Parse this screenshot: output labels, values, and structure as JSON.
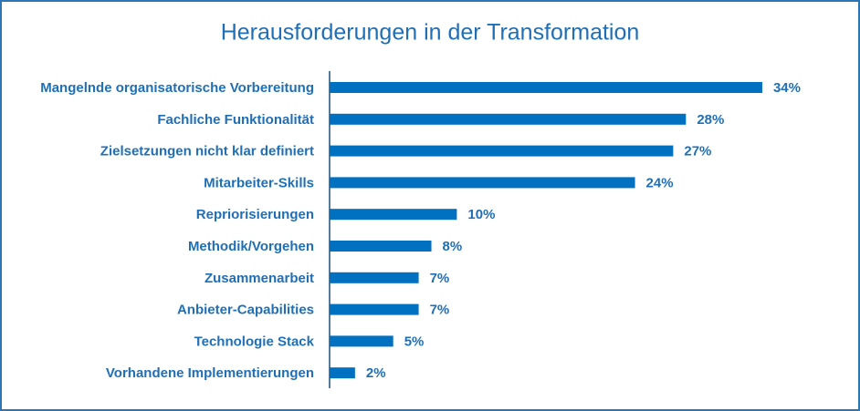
{
  "chart_data": {
    "type": "bar",
    "orientation": "horizontal",
    "title": "Herausforderungen  in der Transformation",
    "categories": [
      "Mangelnde organisatorische Vorbereitung",
      "Fachliche Funktionalität",
      "Zielsetzungen nicht klar definiert",
      "Mitarbeiter-Skills",
      "Repriorisierungen",
      "Methodik/Vorgehen",
      "Zusammenarbeit",
      "Anbieter-Capabilities",
      "Technologie Stack",
      "Vorhandene Implementierungen"
    ],
    "values": [
      34,
      28,
      27,
      24,
      10,
      8,
      7,
      7,
      5,
      2
    ],
    "value_labels": [
      "34%",
      "28%",
      "27%",
      "24%",
      "10%",
      "8%",
      "7%",
      "7%",
      "5%",
      "2%"
    ],
    "color": "#0070c0"
  }
}
